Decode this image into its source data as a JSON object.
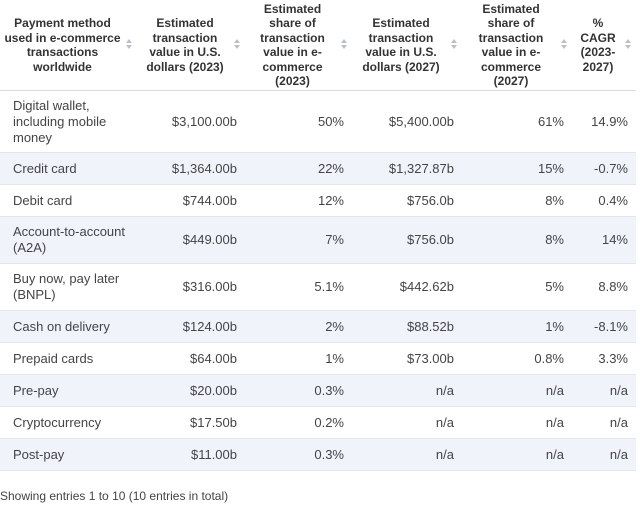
{
  "table": {
    "columns": [
      "Payment method used in e-commerce transactions worldwide",
      "Estimated transaction value in U.S. dollars (2023)",
      "Estimated share of transaction value in e-commerce (2023)",
      "Estimated transaction value in U.S. dollars (2027)",
      "Estimated share of transaction value in e-commerce (2027)",
      "% CAGR (2023-2027)"
    ],
    "rows": [
      {
        "method": "Digital wallet, including mobile money",
        "v2023": "$3,100.00b",
        "s2023": "50%",
        "v2027": "$5,400.00b",
        "s2027": "61%",
        "cagr": "14.9%"
      },
      {
        "method": "Credit card",
        "v2023": "$1,364.00b",
        "s2023": "22%",
        "v2027": "$1,327.87b",
        "s2027": "15%",
        "cagr": "-0.7%"
      },
      {
        "method": "Debit card",
        "v2023": "$744.00b",
        "s2023": "12%",
        "v2027": "$756.0b",
        "s2027": "8%",
        "cagr": "0.4%"
      },
      {
        "method": "Account-to-account (A2A)",
        "v2023": "$449.00b",
        "s2023": "7%",
        "v2027": "$756.0b",
        "s2027": "8%",
        "cagr": "14%"
      },
      {
        "method": "Buy now, pay later (BNPL)",
        "v2023": "$316.00b",
        "s2023": "5.1%",
        "v2027": "$442.62b",
        "s2027": "5%",
        "cagr": "8.8%"
      },
      {
        "method": "Cash on delivery",
        "v2023": "$124.00b",
        "s2023": "2%",
        "v2027": "$88.52b",
        "s2027": "1%",
        "cagr": "-8.1%"
      },
      {
        "method": "Prepaid cards",
        "v2023": "$64.00b",
        "s2023": "1%",
        "v2027": "$73.00b",
        "s2027": "0.8%",
        "cagr": "3.3%"
      },
      {
        "method": "Pre-pay",
        "v2023": "$20.00b",
        "s2023": "0.3%",
        "v2027": "n/a",
        "s2027": "n/a",
        "cagr": "n/a"
      },
      {
        "method": "Cryptocurrency",
        "v2023": "$17.50b",
        "s2023": "0.2%",
        "v2027": "n/a",
        "s2027": "n/a",
        "cagr": "n/a"
      },
      {
        "method": "Post-pay",
        "v2023": "$11.00b",
        "s2023": "0.3%",
        "v2027": "n/a",
        "s2027": "n/a",
        "cagr": "n/a"
      }
    ]
  },
  "footer": {
    "entries_text": "Showing entries 1 to 10 (10 entries in total)"
  }
}
